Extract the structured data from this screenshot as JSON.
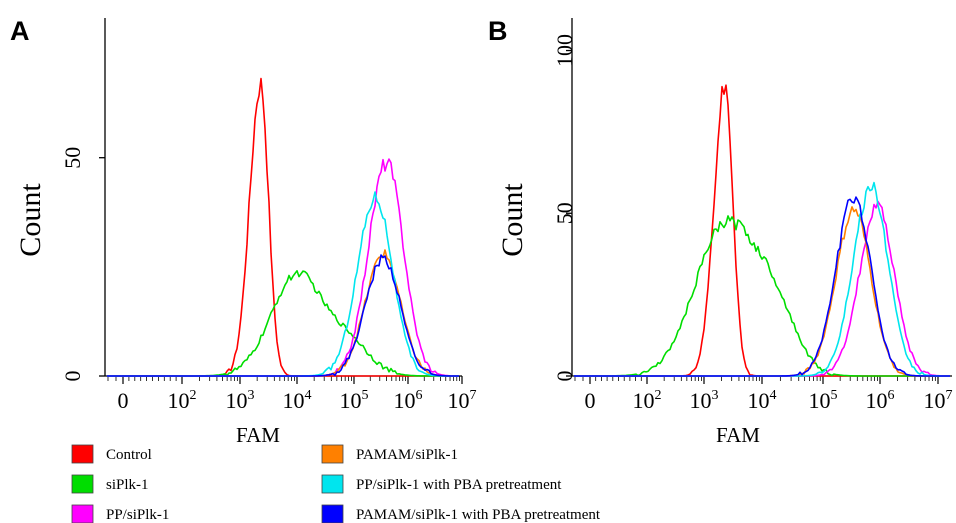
{
  "chart_data": [
    {
      "type": "histogram",
      "panel": "A",
      "xlabel": "FAM",
      "ylabel": "Count",
      "x_scale": "biexponential",
      "xticks": [
        "0",
        "10^2",
        "10^3",
        "10^4",
        "10^5",
        "10^6",
        "10^7"
      ],
      "yticks": [
        "0",
        "50"
      ],
      "ylim": [
        0,
        82
      ],
      "series": [
        {
          "name": "Control",
          "color": "#ff0000",
          "peak_x": "2.3×10^3",
          "peak_count": 67
        },
        {
          "name": "siPlk-1",
          "color": "#00dd00",
          "peak_x": "1.0×10^4",
          "peak_count": 23
        },
        {
          "name": "PP/siPlk-1",
          "color": "#ff00ff",
          "peak_x": "4.0×10^5",
          "peak_count": 49
        },
        {
          "name": "PAMAM/siPlk-1",
          "color": "#ff8000",
          "peak_x": "3.5×10^5",
          "peak_count": 28
        },
        {
          "name": "PP/siPlk-1 with PBA pretreatment",
          "color": "#00e5ee",
          "peak_x": "2.5×10^5",
          "peak_count": 41
        },
        {
          "name": "PAMAM/siPlk-1 with PBA pretreatment",
          "color": "#0000ff",
          "peak_x": "3.5×10^5",
          "peak_count": 27
        }
      ]
    },
    {
      "type": "histogram",
      "panel": "B",
      "xlabel": "FAM",
      "ylabel": "Count",
      "x_scale": "biexponential",
      "xticks": [
        "0",
        "10^2",
        "10^3",
        "10^4",
        "10^5",
        "10^6",
        "10^7"
      ],
      "yticks": [
        "0",
        "50",
        "100"
      ],
      "ylim": [
        0,
        110
      ],
      "series": [
        {
          "name": "Control",
          "color": "#ff0000",
          "peak_x": "2.3×10^3",
          "peak_count": 90
        },
        {
          "name": "siPlk-1",
          "color": "#00dd00",
          "peak_x": "2.3×10^3",
          "peak_count": 46
        },
        {
          "name": "PP/siPlk-1",
          "color": "#ff00ff",
          "peak_x": "9.0×10^5",
          "peak_count": 52
        },
        {
          "name": "PAMAM/siPlk-1",
          "color": "#ff8000",
          "peak_x": "3.5×10^5",
          "peak_count": 51
        },
        {
          "name": "PP/siPlk-1 with PBA pretreatment",
          "color": "#00e5ee",
          "peak_x": "7.0×10^5",
          "peak_count": 58
        },
        {
          "name": "PAMAM/siPlk-1 with PBA pretreatment",
          "color": "#0000ff",
          "peak_x": "3.5×10^5",
          "peak_count": 55
        }
      ]
    }
  ],
  "legend": [
    {
      "label": "Control",
      "color": "#ff0000"
    },
    {
      "label": "siPlk-1",
      "color": "#00dd00"
    },
    {
      "label": "PP/siPlk-1",
      "color": "#ff00ff"
    },
    {
      "label": "PAMAM/siPlk-1",
      "color": "#ff8000"
    },
    {
      "label": "PP/siPlk-1 with PBA pretreatment",
      "color": "#00e5ee"
    },
    {
      "label": "PAMAM/siPlk-1 with PBA pretreatment",
      "color": "#0000ff"
    }
  ]
}
